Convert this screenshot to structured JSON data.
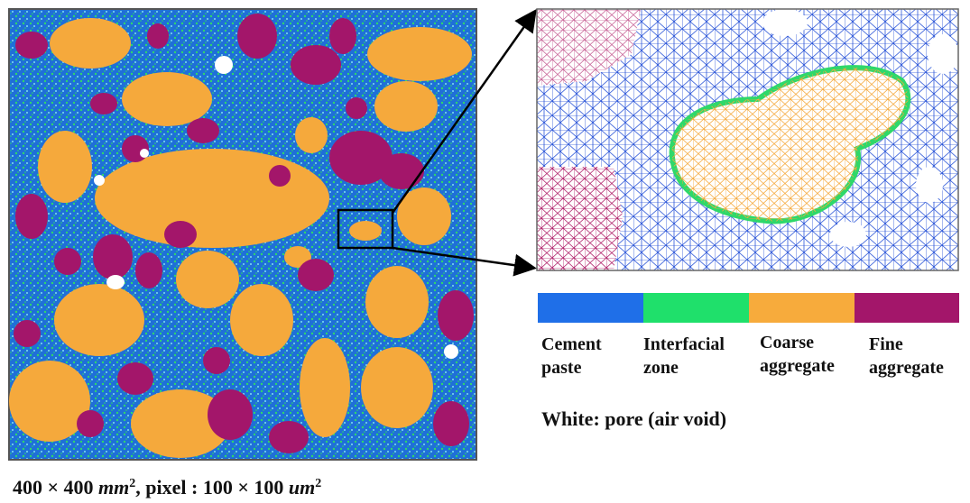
{
  "legend": {
    "items": [
      {
        "lines": [
          "Cement",
          "paste"
        ]
      },
      {
        "lines": [
          "Interfacial",
          "zone"
        ]
      },
      {
        "lines": [
          "Coarse",
          "aggregate"
        ]
      },
      {
        "lines": [
          "Fine",
          "aggregate"
        ]
      }
    ],
    "note": "White: pore (air void)"
  },
  "caption": {
    "parts": [
      "400 × 400 ",
      "mm",
      "2",
      ", pixel : 100 × 100 ",
      "um",
      "2"
    ]
  }
}
